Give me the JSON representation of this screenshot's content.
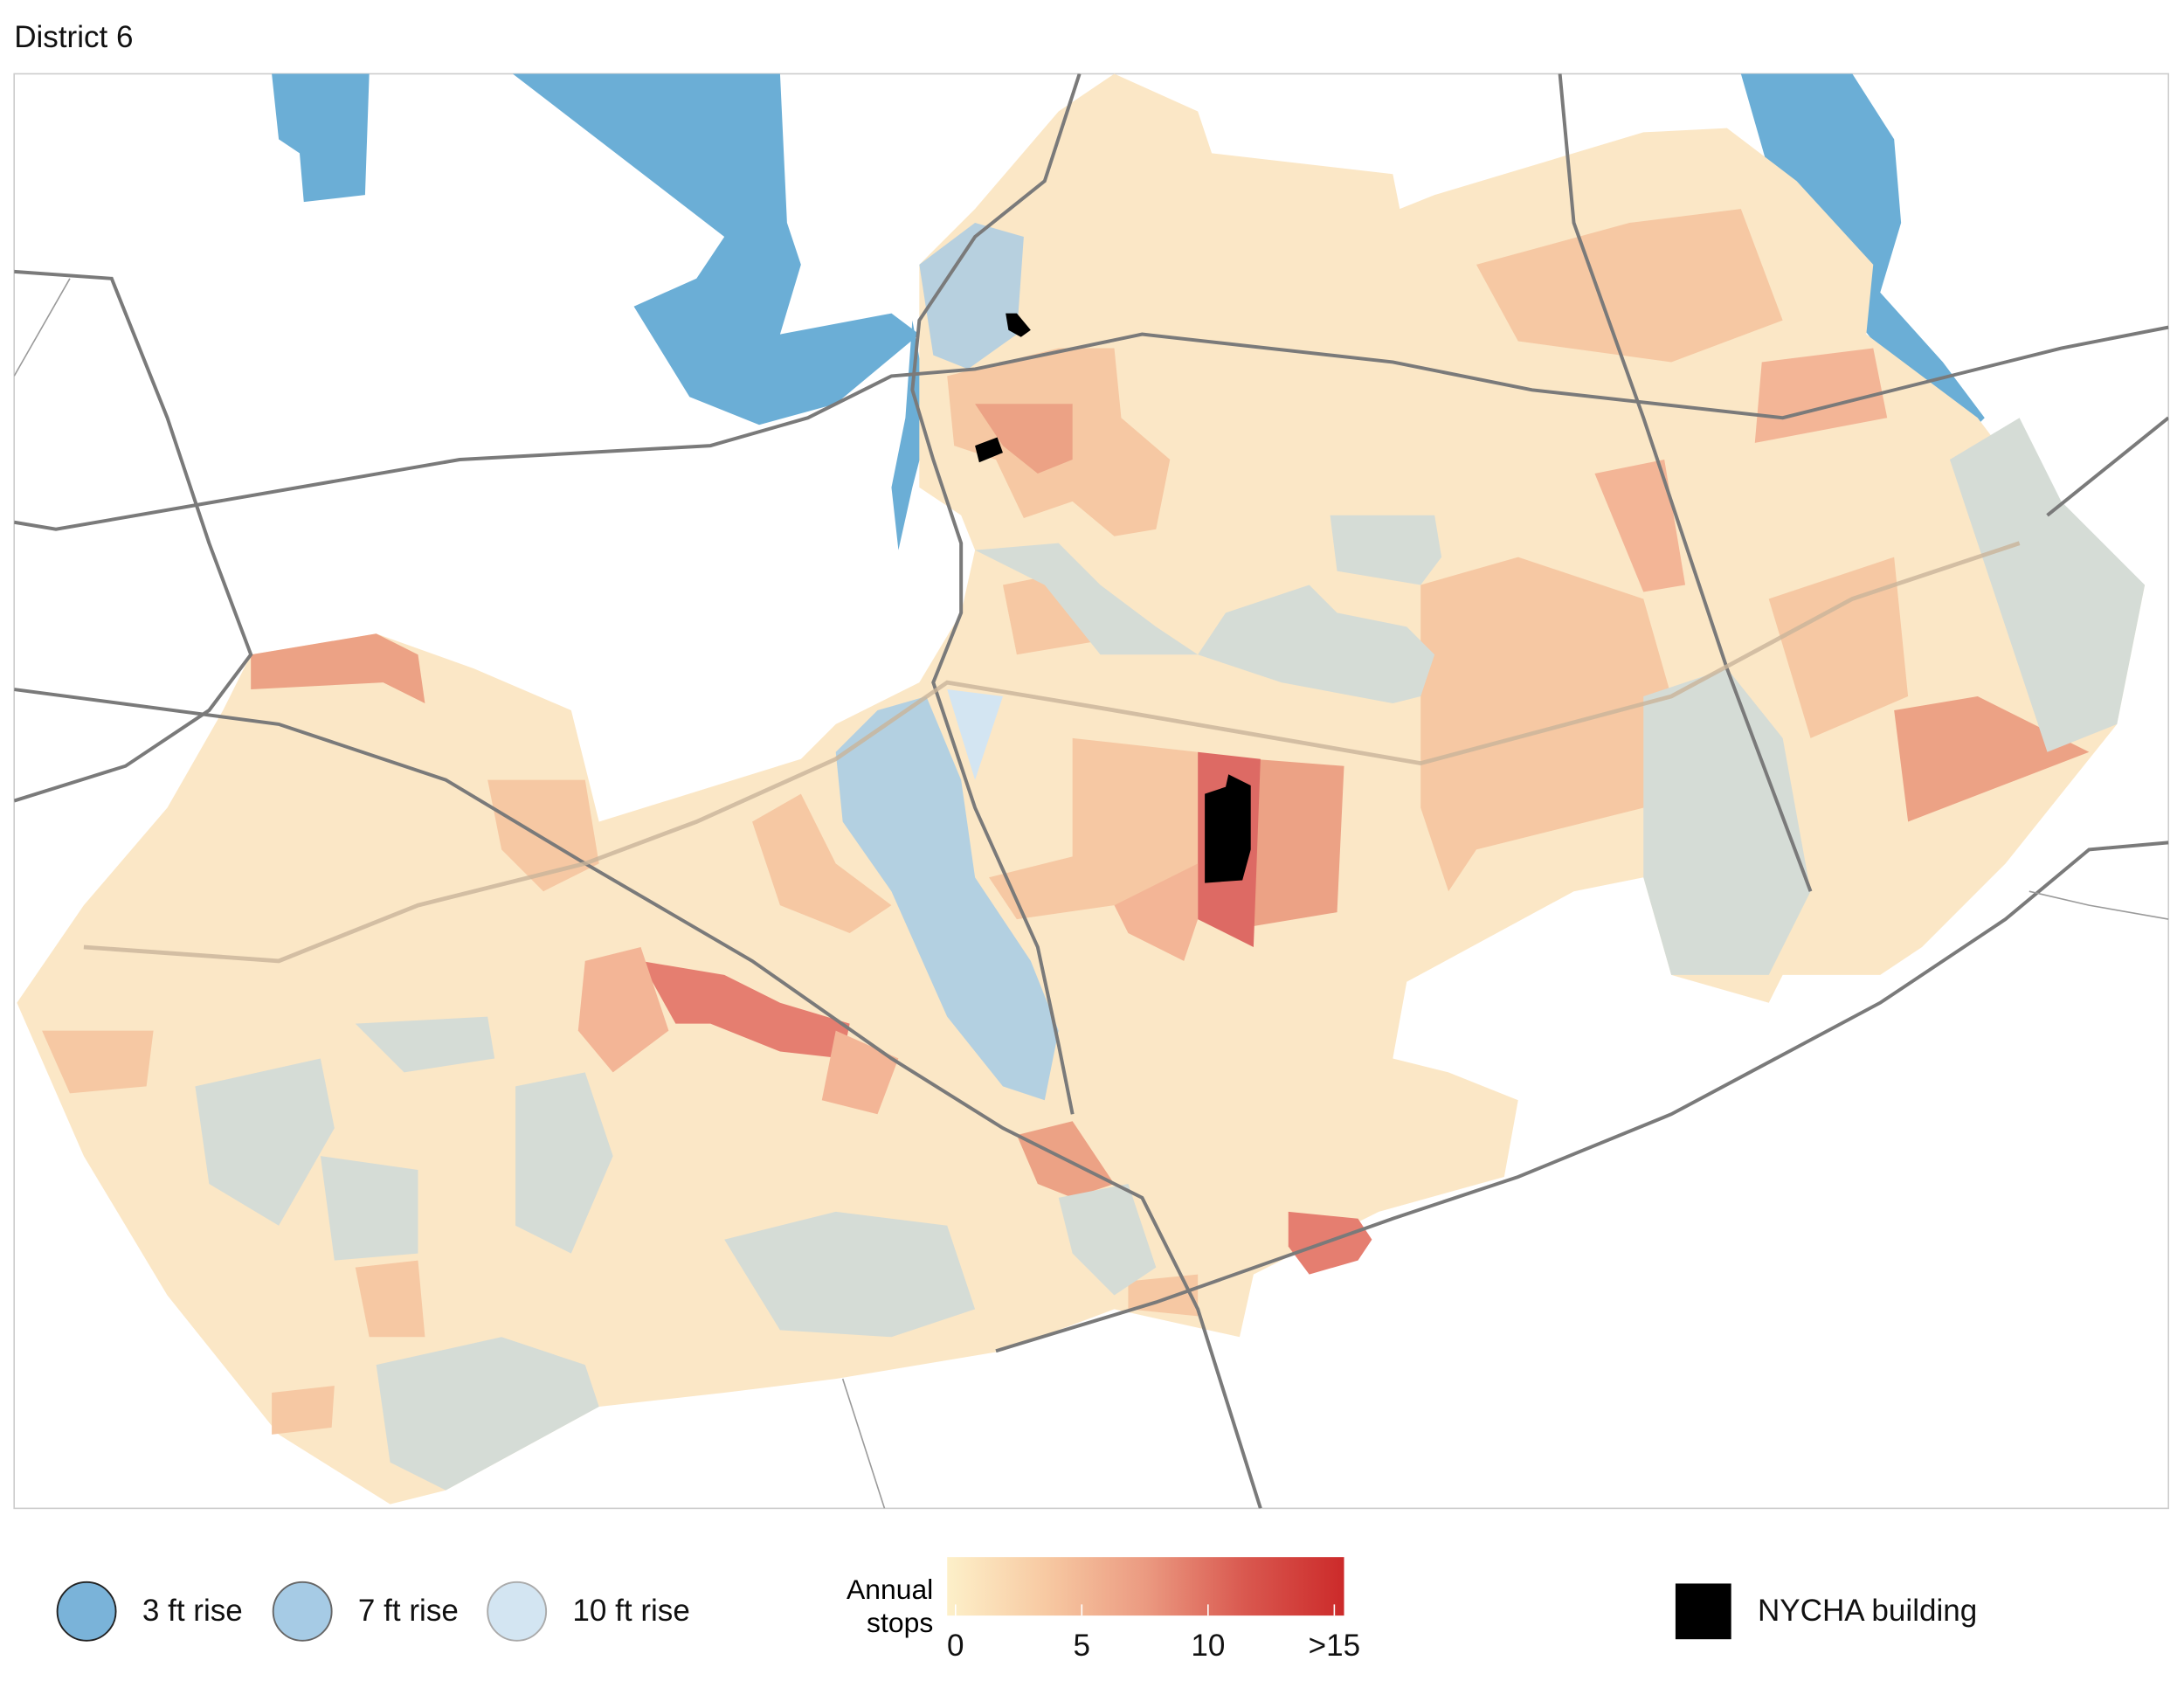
{
  "title": "District 6",
  "legend": {
    "flood": [
      "3 ft rise",
      "7 ft rise",
      "10 ft rise"
    ],
    "colorbar": {
      "label": "Annual stops",
      "range": [
        0,
        15
      ],
      "colors": [
        "#fdf0c9",
        "#f7c9a2",
        "#eb9a81",
        "#d9584f",
        "#cc2a2a"
      ],
      "ticks": [
        0,
        5,
        10,
        {
          "value": 15,
          "label": ">15"
        }
      ]
    },
    "building": "NYCHA building"
  }
}
